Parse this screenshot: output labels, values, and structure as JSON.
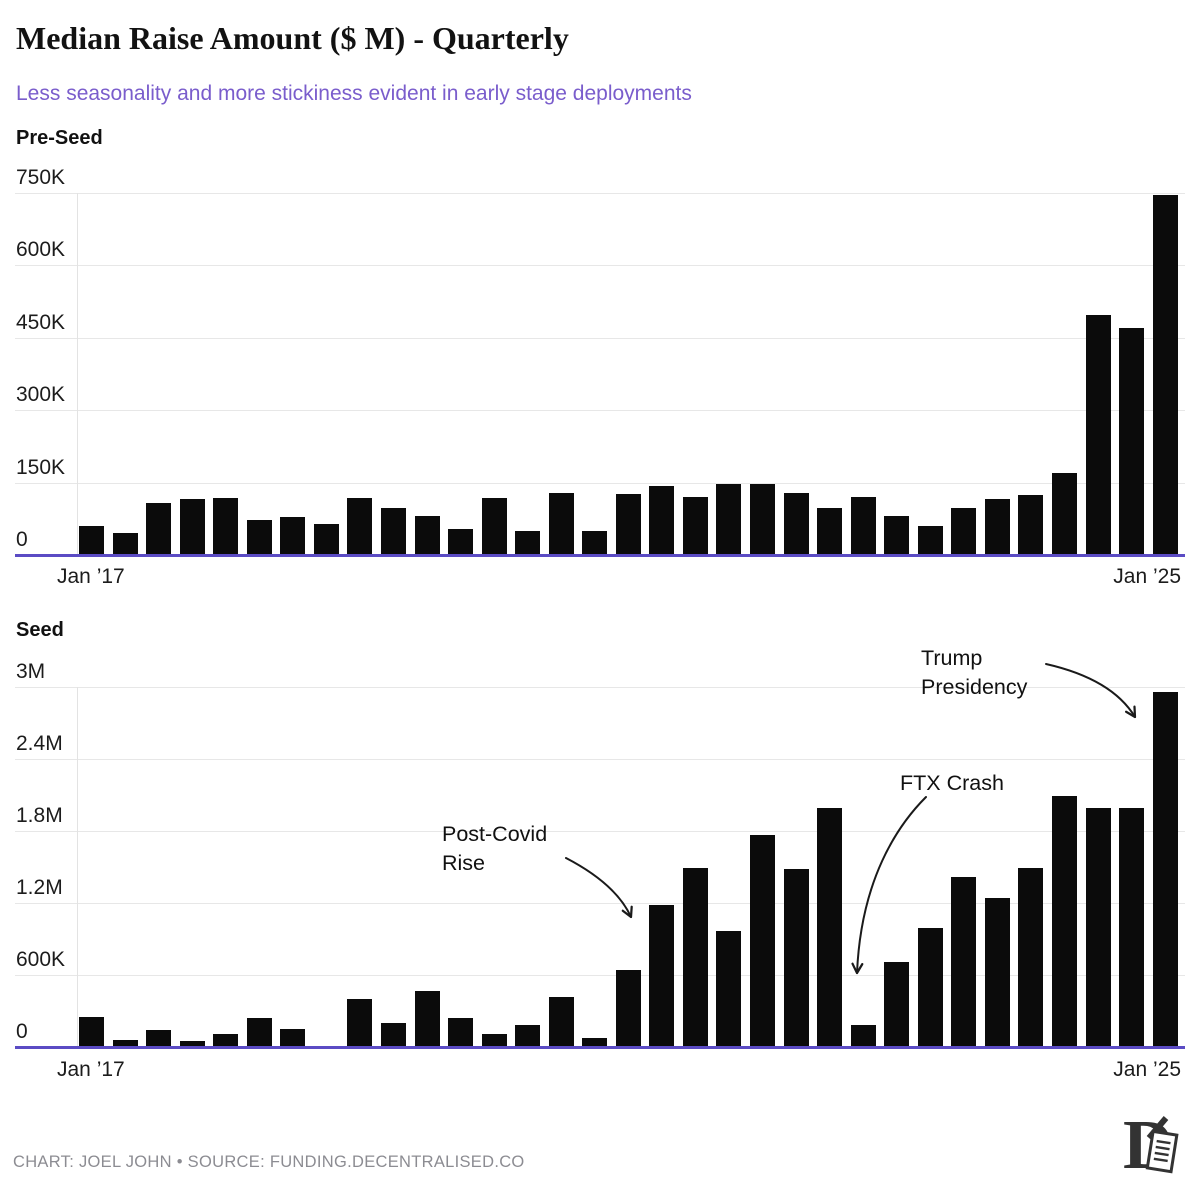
{
  "header": {
    "title": "Median Raise Amount ($ M) - Quarterly",
    "subtitle": "Less seasonality and more stickiness evident in early stage deployments"
  },
  "chart_data": [
    {
      "type": "bar",
      "name": "Pre-Seed",
      "title": "Pre-Seed",
      "unit": "USD",
      "frequency": "quarterly",
      "x_axis": {
        "start_label": "Jan ’17",
        "end_label": "Jan ’25",
        "points": 33
      },
      "y_axis": {
        "max": 750000,
        "ylim": [
          0,
          750000
        ],
        "ticks": [
          {
            "value": 0,
            "label": "0"
          },
          {
            "value": 150000,
            "label": "150K"
          },
          {
            "value": 300000,
            "label": "300K"
          },
          {
            "value": 450000,
            "label": "450K"
          },
          {
            "value": 600000,
            "label": "600K"
          },
          {
            "value": 750000,
            "label": "750K"
          }
        ]
      },
      "values": [
        60000,
        46000,
        108000,
        116000,
        119000,
        72000,
        79000,
        65000,
        119000,
        98000,
        81000,
        53000,
        119000,
        50000,
        129000,
        50000,
        126000,
        143000,
        121000,
        147000,
        148000,
        129000,
        97000,
        120000,
        81000,
        60000,
        97000,
        116000,
        124000,
        170000,
        497000,
        471000,
        745000
      ]
    },
    {
      "type": "bar",
      "name": "Seed",
      "title": "Seed",
      "unit": "USD",
      "frequency": "quarterly",
      "x_axis": {
        "start_label": "Jan ’17",
        "end_label": "Jan ’25",
        "points": 33
      },
      "y_axis": {
        "max": 3000000,
        "ylim": [
          0,
          3000000
        ],
        "ticks": [
          {
            "value": 0,
            "label": "0"
          },
          {
            "value": 600000,
            "label": "600K"
          },
          {
            "value": 1200000,
            "label": "1.2M"
          },
          {
            "value": 1800000,
            "label": "1.8M"
          },
          {
            "value": 2400000,
            "label": "2.4M"
          },
          {
            "value": 3000000,
            "label": "3M"
          }
        ]
      },
      "values": [
        250000,
        55000,
        140000,
        50000,
        110000,
        245000,
        150000,
        0,
        400000,
        200000,
        465000,
        240000,
        110000,
        185000,
        420000,
        75000,
        640000,
        1180000,
        1490000,
        970000,
        1770000,
        1480000,
        1990000,
        185000,
        710000,
        990000,
        1420000,
        1240000,
        1490000,
        2090000,
        1990000,
        1990000,
        2960000
      ],
      "annotations": [
        {
          "text": "Post-Covid\nRise",
          "points_to": "2021 Q1 rise"
        },
        {
          "text": "FTX Crash",
          "points_to": "late 2022 dip"
        },
        {
          "text": "Trump\nPresidency",
          "points_to": "Jan ’25 spike"
        }
      ]
    }
  ],
  "footer": {
    "credit": "CHART: JOEL JOHN • SOURCE: FUNDING.DECENTRALISED.CO",
    "logo": "decentralised-d-logo"
  },
  "colors": {
    "bar": "#0b0b0b",
    "baseline": "#5b4bc4",
    "subtitle": "#7a5dcc",
    "gridline": "#e7e7e7",
    "footer_text": "#8c8c92",
    "text": "#111111",
    "background": "#ffffff"
  }
}
